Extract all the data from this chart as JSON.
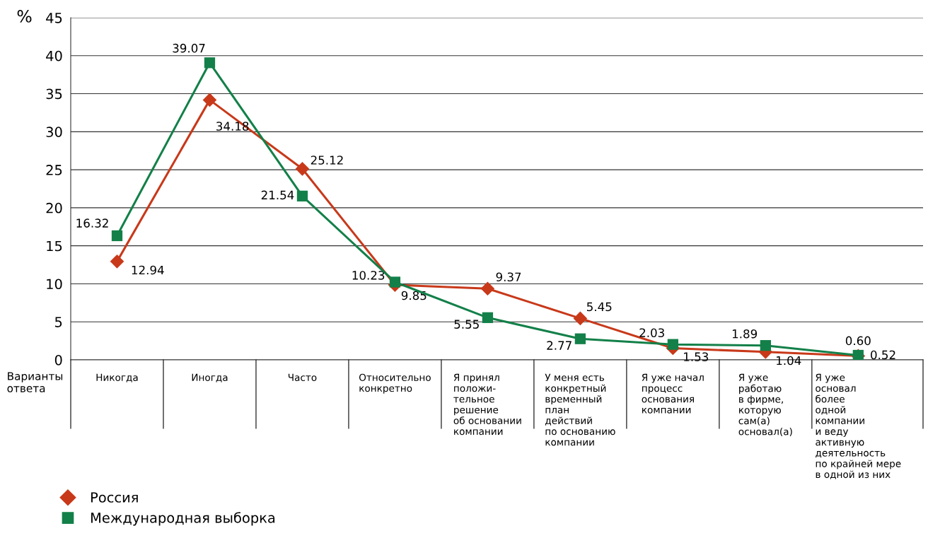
{
  "chart_data": {
    "type": "line",
    "ylabel": "%",
    "xlabel": "Варианты\nответа",
    "categories": [
      "Никогда",
      "Иногда",
      "Часто",
      "Относительно\nконкретно",
      "Я принял\nположи-\nтельное\nрешение\nоб основании\nкомпании",
      "У меня есть\nконкретный\nвременный\nплан\nдействий\nпо основанию\nкомпании",
      "Я уже начал\nпроцесс\nоснования\nкомпании",
      "Я уже\nработаю\nв фирме,\nкоторую\nсам(а)\nосновал(а)",
      "Я уже\nосновал\nболее\nодной\nкомпании\nи веду\nактивную\nдеятельность\nпо крайней мере\nв одной из них"
    ],
    "series": [
      {
        "name": "Россия",
        "color": "#c8391a",
        "marker": "diamond",
        "values": [
          12.94,
          34.18,
          25.12,
          9.85,
          9.37,
          5.45,
          1.53,
          1.04,
          0.52
        ],
        "value_labels": [
          "12.94",
          "34.18",
          "25.12",
          "9.85",
          "9.37",
          "5.45",
          "1.53",
          "1.04",
          "0.52"
        ]
      },
      {
        "name": "Международная выборка",
        "color": "#138049",
        "marker": "square",
        "values": [
          16.32,
          39.07,
          21.54,
          10.23,
          5.55,
          2.77,
          2.03,
          1.89,
          0.6
        ],
        "value_labels": [
          "16.32",
          "39.07",
          "21.54",
          "10.23",
          "5.55",
          "2.77",
          "2.03",
          "1.89",
          "0.60"
        ]
      }
    ],
    "ylim": [
      0,
      45
    ],
    "yticks": [
      0,
      5,
      10,
      15,
      20,
      25,
      30,
      35,
      40,
      45
    ],
    "grid": "y",
    "legend": "bottom left",
    "line_style": "solid"
  }
}
